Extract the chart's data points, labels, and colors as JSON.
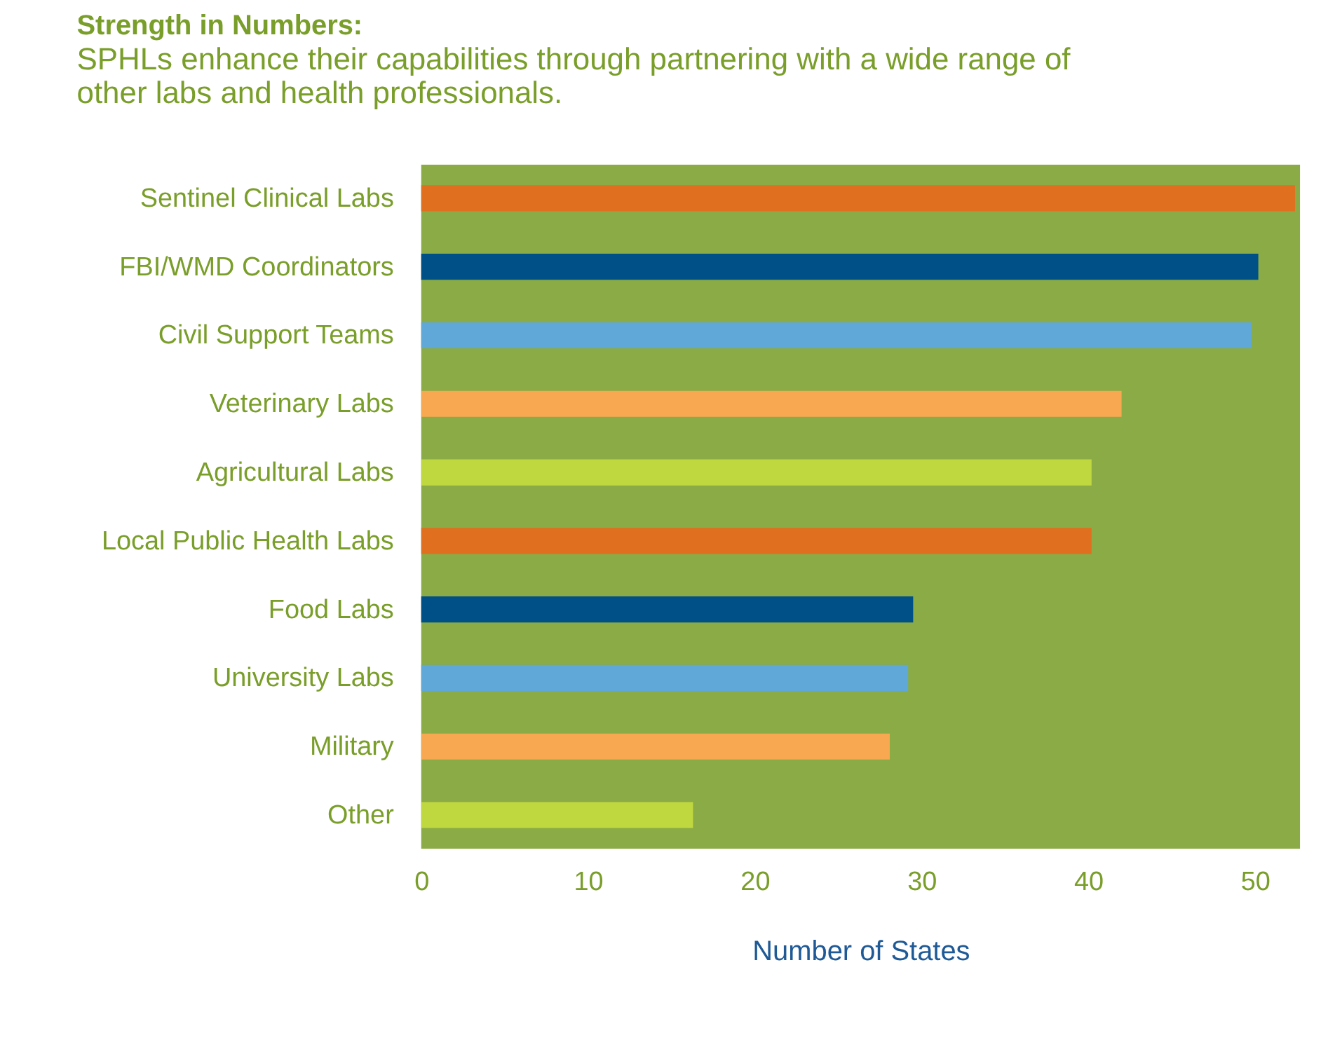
{
  "chart_data": {
    "type": "bar",
    "orientation": "horizontal",
    "title": "Strength in Numbers:",
    "subtitle": "SPHLs enhance their capabilities through partnering with a wide range of other labs and health professionals.",
    "xlabel": "Number of States",
    "categories": [
      "Sentinel Clinical Labs",
      "FBI/WMD Coordinators",
      "Civil Support Teams",
      "Veterinary Labs",
      "Agricultural Labs",
      "Local Public Health Labs",
      "Food Labs",
      "University Labs",
      "Military",
      "Other"
    ],
    "values": [
      52.4,
      50.2,
      49.8,
      42.0,
      40.2,
      40.2,
      29.5,
      29.2,
      28.1,
      16.3
    ],
    "colors": [
      "#e07020",
      "#005088",
      "#60a8d8",
      "#f8a850",
      "#c0d840",
      "#e07020",
      "#005088",
      "#60a8d8",
      "#f8a850",
      "#c0d840"
    ],
    "xlim": [
      0,
      52.7
    ],
    "xticks": [
      0,
      10,
      20,
      30,
      40,
      50
    ],
    "grid": false
  }
}
